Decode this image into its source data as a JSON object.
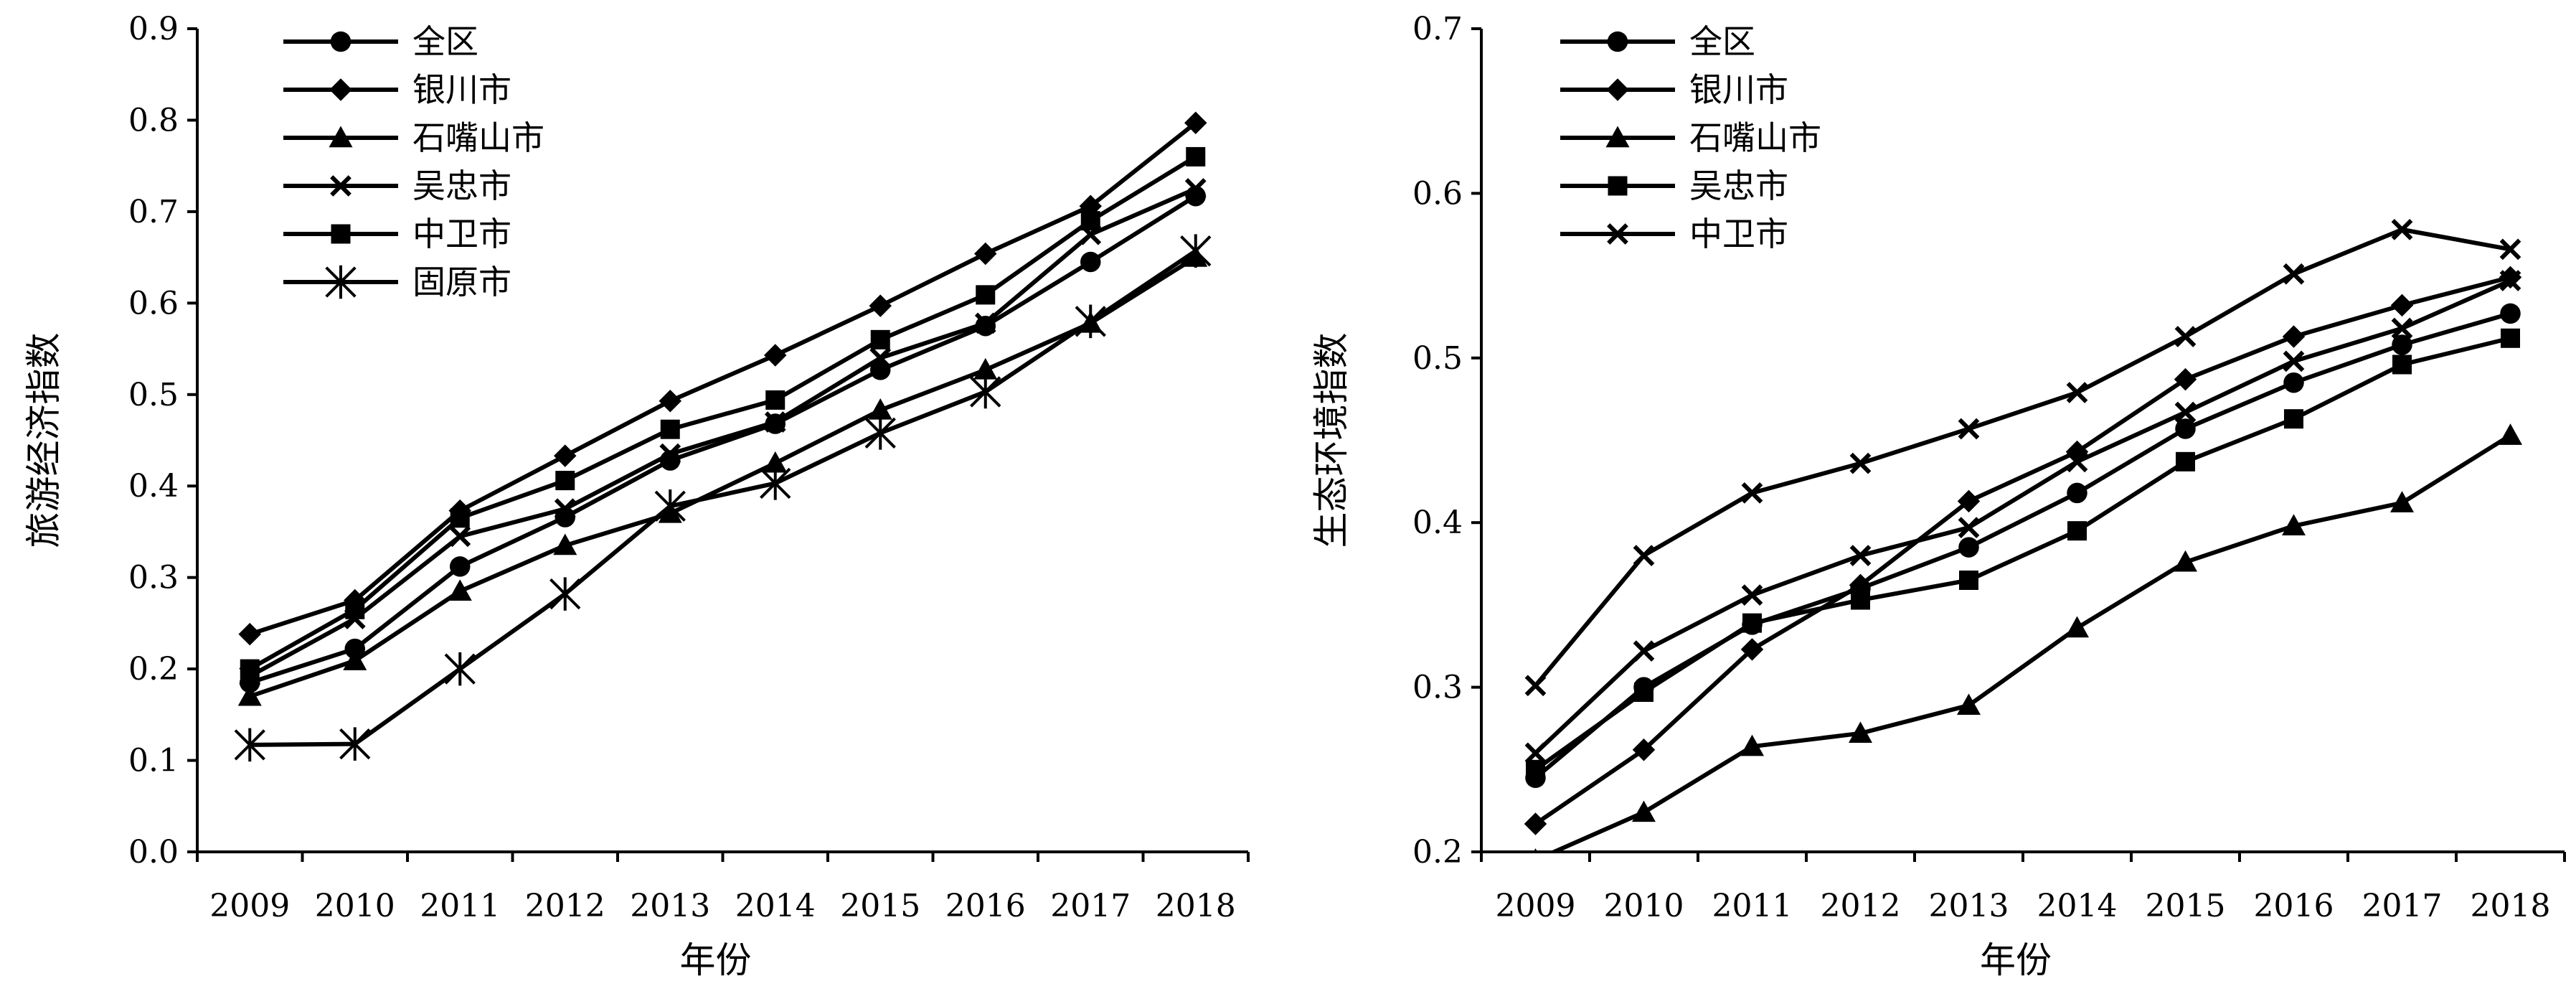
{
  "chart_data": [
    {
      "type": "line",
      "title": "",
      "xlabel": "年份",
      "ylabel": "旅游经济指数",
      "categories": [
        "2009",
        "2010",
        "2011",
        "2012",
        "2013",
        "2014",
        "2015",
        "2016",
        "2017",
        "2018"
      ],
      "ylim": [
        0,
        0.9
      ],
      "yticks": [
        "0.0",
        "0.1",
        "0.2",
        "0.3",
        "0.4",
        "0.5",
        "0.6",
        "0.7",
        "0.8",
        "0.9"
      ],
      "legend_position": "top-left",
      "grid": false,
      "series": [
        {
          "name": "全区",
          "marker": "circle",
          "values": [
            0.185,
            0.222,
            0.312,
            0.366,
            0.428,
            0.468,
            0.527,
            0.575,
            0.645,
            0.717
          ]
        },
        {
          "name": "银川市",
          "marker": "diamond",
          "values": [
            0.238,
            0.275,
            0.373,
            0.433,
            0.493,
            0.543,
            0.597,
            0.654,
            0.706,
            0.797
          ]
        },
        {
          "name": "石嘴山市",
          "marker": "triangle",
          "values": [
            0.17,
            0.209,
            0.285,
            0.335,
            0.37,
            0.425,
            0.483,
            0.527,
            0.578,
            0.65
          ]
        },
        {
          "name": "吴忠市",
          "marker": "xcross",
          "values": [
            0.192,
            0.255,
            0.345,
            0.375,
            0.435,
            0.47,
            0.54,
            0.578,
            0.675,
            0.725
          ]
        },
        {
          "name": "中卫市",
          "marker": "square",
          "values": [
            0.2,
            0.265,
            0.365,
            0.406,
            0.462,
            0.494,
            0.56,
            0.609,
            0.69,
            0.76
          ]
        },
        {
          "name": "固原市",
          "marker": "asterisk",
          "values": [
            0.117,
            0.118,
            0.2,
            0.282,
            0.378,
            0.403,
            0.458,
            0.503,
            0.58,
            0.657
          ]
        }
      ]
    },
    {
      "type": "line",
      "title": "",
      "xlabel": "年份",
      "ylabel": "生态环境指数",
      "categories": [
        "2009",
        "2010",
        "2011",
        "2012",
        "2013",
        "2014",
        "2015",
        "2016",
        "2017",
        "2018"
      ],
      "ylim": [
        0.2,
        0.7
      ],
      "yticks": [
        "0.2",
        "0.3",
        "0.4",
        "0.5",
        "0.6",
        "0.7"
      ],
      "legend_position": "top-left",
      "grid": false,
      "series": [
        {
          "name": "全区",
          "marker": "circle",
          "values": [
            0.245,
            0.3,
            0.338,
            0.36,
            0.385,
            0.418,
            0.457,
            0.485,
            0.508,
            0.527
          ]
        },
        {
          "name": "银川市",
          "marker": "diamond",
          "values": [
            0.217,
            0.262,
            0.323,
            0.362,
            0.413,
            0.443,
            0.487,
            0.513,
            0.532,
            0.549
          ]
        },
        {
          "name": "石嘴山市",
          "marker": "triangle",
          "values": [
            0.195,
            0.224,
            0.264,
            0.272,
            0.289,
            0.336,
            0.376,
            0.398,
            0.412,
            0.453
          ]
        },
        {
          "name": "吴忠市",
          "marker": "square",
          "values": [
            0.25,
            0.297,
            0.339,
            0.353,
            0.365,
            0.395,
            0.437,
            0.463,
            0.496,
            0.512
          ]
        },
        {
          "name": "中卫市",
          "marker": "xcross",
          "values": [
            0.26,
            0.322,
            0.356,
            0.38,
            0.397,
            0.437,
            0.467,
            0.498,
            0.518,
            0.547
          ]
        },
        {
          "name": "",
          "marker": "xcross",
          "values": [
            0.301,
            0.38,
            0.418,
            0.436,
            0.457,
            0.479,
            0.513,
            0.551,
            0.578,
            0.566
          ]
        }
      ]
    }
  ]
}
